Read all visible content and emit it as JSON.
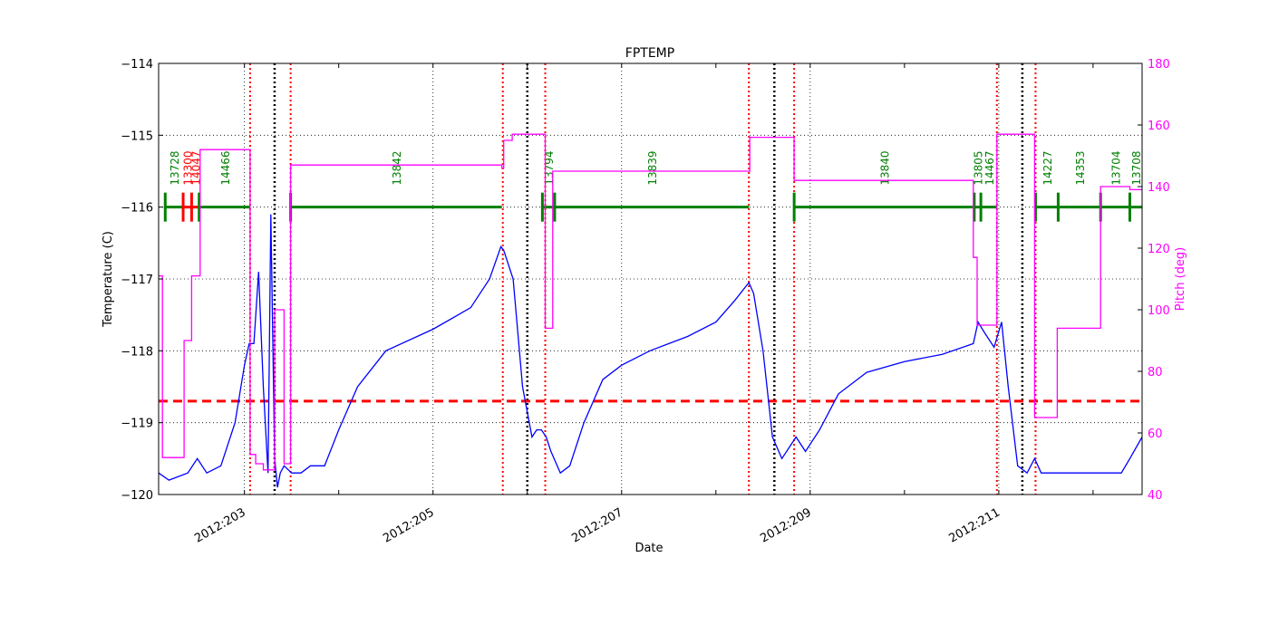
{
  "chart_data": {
    "type": "line",
    "title": "FPTEMP",
    "xlabel": "Date",
    "ylabel": "Temperature (C)",
    "y2label": "Pitch (deg)",
    "xlim_days": [
      202.09,
      212.52
    ],
    "ylim": [
      -120,
      -114
    ],
    "y2lim": [
      40,
      180
    ],
    "x_ticks": [
      "2012:203",
      "2012:205",
      "2012:207",
      "2012:209",
      "2012:211"
    ],
    "x_tick_days": [
      203,
      205,
      207,
      209,
      211
    ],
    "x_minor_tick_days": [
      204,
      206,
      208,
      210,
      212
    ],
    "y_ticks": [
      -120,
      -119,
      -118,
      -117,
      -116,
      -115,
      -114
    ],
    "y2_ticks": [
      40,
      60,
      80,
      100,
      120,
      140,
      160,
      180
    ],
    "grid": true,
    "threshold": {
      "value": -118.7,
      "color": "#ff0000",
      "style": "dashed"
    },
    "colors": {
      "temperature": "#0000ff",
      "pitch": "#ff00ff",
      "obsid": "#008000",
      "obsid_alt": "#ff0000",
      "black_vlines": "#000000",
      "red_vlines": "#ff0000"
    },
    "red_vlines_days": [
      203.06,
      203.49,
      205.74,
      206.19,
      208.35,
      208.83,
      210.98,
      211.39
    ],
    "black_vlines_days": [
      203.32,
      206.0,
      208.62,
      211.25
    ],
    "obsid_segments": [
      {
        "label": "13728",
        "start": 202.16,
        "end": 202.35,
        "color": "#008000"
      },
      {
        "label": "13300",
        "start": 202.35,
        "end": 202.44,
        "color": "#ff0000"
      },
      {
        "label": "14047",
        "start": 202.44,
        "end": 202.52,
        "color": "#ff0000"
      },
      {
        "label": "14466",
        "start": 202.52,
        "end": 203.06,
        "color": "#008000"
      },
      {
        "label": "13842",
        "start": 203.49,
        "end": 205.73,
        "color": "#008000"
      },
      {
        "label": "13794",
        "start": 206.16,
        "end": 206.29,
        "color": "#008000"
      },
      {
        "label": "13839",
        "start": 206.29,
        "end": 208.35,
        "color": "#008000"
      },
      {
        "label": "13840",
        "start": 208.83,
        "end": 210.74,
        "color": "#008000"
      },
      {
        "label": "13805",
        "start": 210.74,
        "end": 210.81,
        "color": "#008000"
      },
      {
        "label": "14467",
        "start": 210.81,
        "end": 210.98,
        "color": "#008000"
      },
      {
        "label": "14227",
        "start": 211.39,
        "end": 211.63,
        "color": "#008000"
      },
      {
        "label": "14353",
        "start": 211.63,
        "end": 212.08,
        "color": "#008000"
      },
      {
        "label": "13704",
        "start": 212.08,
        "end": 212.39,
        "color": "#008000"
      },
      {
        "label": "13708",
        "start": 212.39,
        "end": 212.52,
        "color": "#008000"
      }
    ],
    "series": [
      {
        "name": "FPTEMP",
        "axis": "left",
        "x_days": [
          202.09,
          202.2,
          202.4,
          202.5,
          202.6,
          202.75,
          202.9,
          203.0,
          203.05,
          203.1,
          203.15,
          203.2,
          203.25,
          203.28,
          203.32,
          203.35,
          203.38,
          203.42,
          203.5,
          203.6,
          203.7,
          203.85,
          204.0,
          204.2,
          204.5,
          205.0,
          205.4,
          205.6,
          205.72,
          205.75,
          205.85,
          205.95,
          206.05,
          206.1,
          206.15,
          206.2,
          206.25,
          206.35,
          206.45,
          206.6,
          206.8,
          207.0,
          207.3,
          207.7,
          208.0,
          208.2,
          208.35,
          208.4,
          208.5,
          208.6,
          208.7,
          208.8,
          208.85,
          208.95,
          209.1,
          209.3,
          209.6,
          210.0,
          210.4,
          210.73,
          210.78,
          210.85,
          210.95,
          211.03,
          211.1,
          211.2,
          211.3,
          211.38,
          211.45,
          211.7,
          212.0,
          212.3,
          212.39,
          212.52
        ],
        "y": [
          -119.7,
          -119.8,
          -119.7,
          -119.5,
          -119.7,
          -119.6,
          -119.0,
          -118.2,
          -117.9,
          -117.9,
          -116.9,
          -118.5,
          -119.7,
          -116.1,
          -119.5,
          -119.9,
          -119.7,
          -119.6,
          -119.7,
          -119.7,
          -119.6,
          -119.6,
          -119.1,
          -118.5,
          -118.0,
          -117.7,
          -117.4,
          -117.0,
          -116.55,
          -116.6,
          -117.0,
          -118.5,
          -119.2,
          -119.1,
          -119.1,
          -119.2,
          -119.4,
          -119.7,
          -119.6,
          -119.0,
          -118.4,
          -118.2,
          -118.0,
          -117.8,
          -117.6,
          -117.3,
          -117.05,
          -117.2,
          -118.0,
          -119.2,
          -119.5,
          -119.3,
          -119.2,
          -119.4,
          -119.1,
          -118.6,
          -118.3,
          -118.15,
          -118.05,
          -117.9,
          -117.6,
          -117.75,
          -117.95,
          -117.6,
          -118.5,
          -119.6,
          -119.7,
          -119.5,
          -119.7,
          -119.7,
          -119.7,
          -119.7,
          -119.5,
          -119.2
        ]
      },
      {
        "name": "Pitch",
        "axis": "right",
        "x_days": [
          202.09,
          202.13,
          202.13,
          202.36,
          202.36,
          202.44,
          202.44,
          202.53,
          202.53,
          203.06,
          203.06,
          203.12,
          203.12,
          203.2,
          203.2,
          203.32,
          203.32,
          203.42,
          203.42,
          203.49,
          203.49,
          205.73,
          205.73,
          205.75,
          205.75,
          205.84,
          205.84,
          206.19,
          206.19,
          206.27,
          206.27,
          208.35,
          208.35,
          208.36,
          208.36,
          208.83,
          208.83,
          210.73,
          210.73,
          210.77,
          210.77,
          210.81,
          210.81,
          210.98,
          210.98,
          211.38,
          211.38,
          211.62,
          211.62,
          212.08,
          212.08,
          212.39,
          212.39,
          212.52
        ],
        "y": [
          111,
          111,
          52,
          52,
          90,
          90,
          111,
          111,
          152,
          152,
          53,
          53,
          50,
          50,
          48,
          48,
          100,
          100,
          50,
          50,
          147,
          147,
          146,
          146,
          155,
          155,
          157,
          157,
          94,
          94,
          145,
          145,
          145,
          145,
          156,
          156,
          142,
          142,
          117,
          117,
          95,
          95,
          95,
          95,
          157,
          157,
          65,
          65,
          94,
          94,
          140,
          140,
          139,
          139
        ]
      }
    ]
  }
}
